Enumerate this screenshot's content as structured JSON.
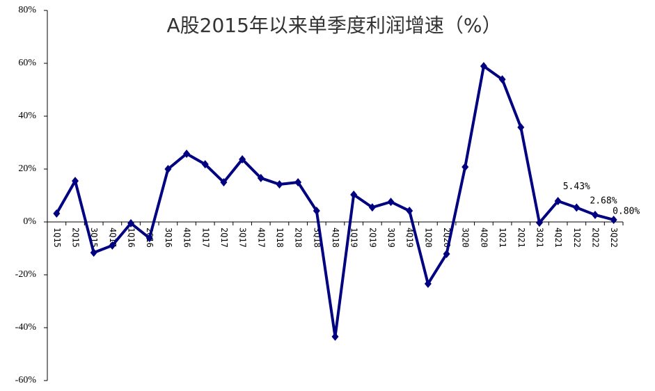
{
  "chart_data": {
    "type": "line",
    "title": "A股2015年以来单季度利润增速（%）",
    "categories": [
      "1Q15",
      "2Q15",
      "3Q15",
      "4Q15",
      "1Q16",
      "2Q16",
      "3Q16",
      "4Q16",
      "1Q17",
      "2Q17",
      "3Q17",
      "4Q17",
      "1Q18",
      "2Q18",
      "3Q18",
      "4Q18",
      "1Q19",
      "2Q19",
      "3Q19",
      "4Q19",
      "1Q20",
      "2Q20",
      "3Q20",
      "4Q20",
      "1Q21",
      "2Q21",
      "3Q21",
      "4Q21",
      "1Q22",
      "2Q22",
      "3Q22"
    ],
    "values": [
      3.2,
      15.5,
      -11.6,
      -8.9,
      -0.5,
      -6.1,
      20,
      25.8,
      21.8,
      15,
      23.7,
      16.6,
      14.2,
      15,
      4.2,
      -43.4,
      10.3,
      5.5,
      7.6,
      4.2,
      -23.4,
      -12.1,
      20.8,
      58.9,
      53.9,
      35.8,
      -0.3,
      7.9,
      5.43,
      2.68,
      0.8
    ],
    "value_labels": [
      null,
      null,
      null,
      null,
      null,
      null,
      null,
      null,
      null,
      null,
      null,
      null,
      null,
      null,
      null,
      null,
      null,
      null,
      null,
      null,
      null,
      null,
      null,
      null,
      null,
      null,
      null,
      null,
      "5.43%",
      "2.68%",
      "0.80%"
    ],
    "color": "#000080",
    "ylim": [
      -60,
      80
    ],
    "yticks": [
      {
        "value": -60,
        "label": "-60%"
      },
      {
        "value": -40,
        "label": "-40%"
      },
      {
        "value": -20,
        "label": "-20%"
      },
      {
        "value": 0,
        "label": "0%"
      },
      {
        "value": 20,
        "label": "20%"
      },
      {
        "value": 40,
        "label": "40%"
      },
      {
        "value": 60,
        "label": "60%"
      },
      {
        "value": 80,
        "label": "80%"
      }
    ],
    "grid": false
  }
}
